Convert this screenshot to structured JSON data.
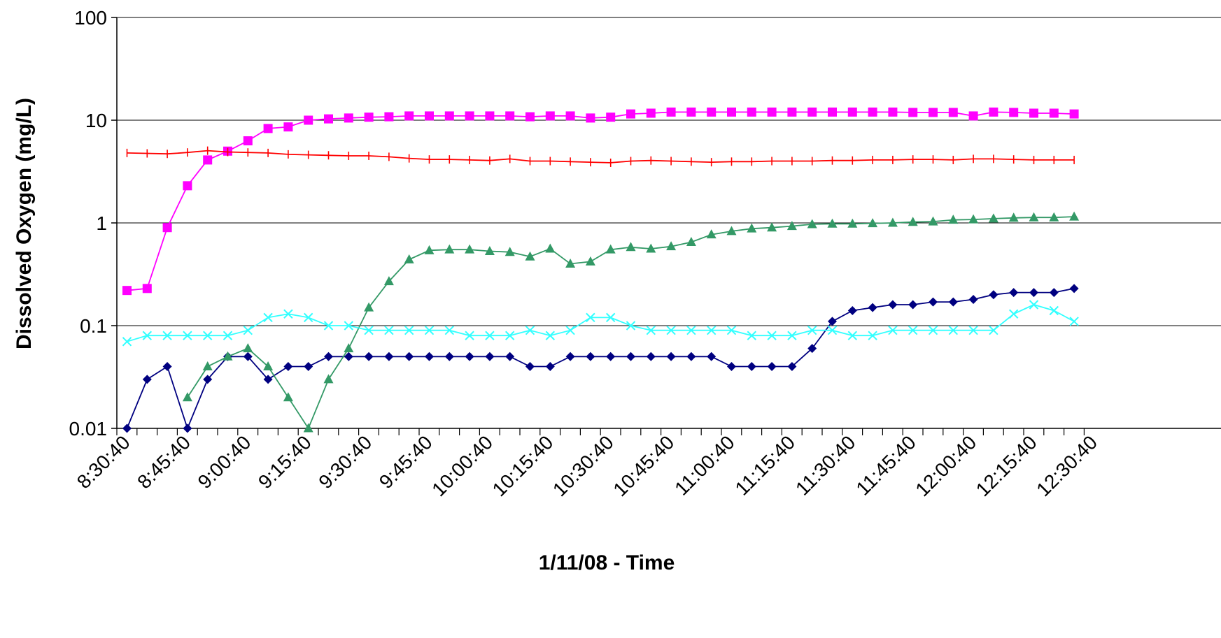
{
  "chart_data": {
    "type": "line",
    "title": "",
    "xlabel": "1/11/08 - Time",
    "ylabel": "Dissolved Oxygen (mg/L)",
    "y_scale": "log",
    "ylim": [
      0.01,
      100
    ],
    "y_ticks": [
      "0.01",
      "0.1",
      "1",
      "10",
      "100"
    ],
    "grid": "horizontal major gridlines",
    "legend": "none",
    "x_start": "8:30:40",
    "x_interval_minutes": 5,
    "x_tick_labels": [
      "8:30:40",
      "8:45:40",
      "9:00:40",
      "9:15:40",
      "9:30:40",
      "9:45:40",
      "10:00:40",
      "10:15:40",
      "10:30:40",
      "10:45:40",
      "11:00:40",
      "11:15:40",
      "11:30:40",
      "11:45:40",
      "12:00:40",
      "12:15:40",
      "12:30:40"
    ],
    "series": [
      {
        "color": "#000080",
        "marker": "diamond",
        "values": [
          0.01,
          0.03,
          0.04,
          0.01,
          0.03,
          0.05,
          0.05,
          0.03,
          0.04,
          0.04,
          0.05,
          0.05,
          0.05,
          0.05,
          0.05,
          0.05,
          0.05,
          0.05,
          0.05,
          0.05,
          0.04,
          0.04,
          0.05,
          0.05,
          0.05,
          0.05,
          0.05,
          0.05,
          0.05,
          0.05,
          0.04,
          0.04,
          0.04,
          0.04,
          0.06,
          0.11,
          0.14,
          0.15,
          0.16,
          0.16,
          0.17,
          0.17,
          0.18,
          0.2,
          0.21,
          0.21,
          0.21,
          0.23
        ]
      },
      {
        "color": "#ff00ff",
        "marker": "square",
        "values": [
          0.22,
          0.23,
          0.9,
          2.3,
          4.1,
          5.0,
          6.3,
          8.3,
          8.6,
          10.0,
          10.3,
          10.5,
          10.7,
          10.8,
          11.0,
          11.0,
          11.0,
          11.0,
          11.0,
          11.0,
          10.8,
          11.0,
          11.0,
          10.5,
          10.7,
          11.5,
          11.7,
          12.0,
          12.0,
          12.0,
          12.0,
          12.0,
          12.0,
          12.0,
          12.0,
          12.0,
          12.0,
          12.0,
          12.0,
          11.9,
          11.9,
          11.9,
          11.0,
          12.0,
          11.9,
          11.7,
          11.7,
          11.5
        ]
      },
      {
        "color": "#ff0000",
        "marker": "plus",
        "values": [
          4.8,
          4.75,
          4.7,
          4.85,
          5.05,
          4.9,
          4.85,
          4.8,
          4.65,
          4.6,
          4.55,
          4.5,
          4.5,
          4.4,
          4.25,
          4.15,
          4.15,
          4.1,
          4.05,
          4.2,
          4.0,
          4.0,
          3.95,
          3.9,
          3.85,
          4.0,
          4.05,
          4.0,
          3.95,
          3.9,
          3.95,
          3.95,
          4.0,
          4.0,
          4.0,
          4.05,
          4.05,
          4.1,
          4.1,
          4.15,
          4.15,
          4.1,
          4.2,
          4.2,
          4.15,
          4.1,
          4.1,
          4.1
        ]
      },
      {
        "color": "#339966",
        "marker": "triangle",
        "values": [
          null,
          null,
          null,
          0.02,
          0.04,
          0.05,
          0.06,
          0.04,
          0.02,
          0.01,
          0.03,
          0.06,
          0.15,
          0.27,
          0.44,
          0.54,
          0.55,
          0.55,
          0.53,
          0.52,
          0.47,
          0.56,
          0.4,
          0.42,
          0.55,
          0.58,
          0.56,
          0.59,
          0.65,
          0.77,
          0.83,
          0.88,
          0.9,
          0.93,
          0.97,
          0.98,
          0.98,
          0.99,
          1.0,
          1.02,
          1.03,
          1.07,
          1.08,
          1.1,
          1.12,
          1.13,
          1.13,
          1.15
        ]
      },
      {
        "color": "#33ffff",
        "marker": "x",
        "values": [
          0.07,
          0.08,
          0.08,
          0.08,
          0.08,
          0.08,
          0.09,
          0.12,
          0.13,
          0.12,
          0.1,
          0.1,
          0.09,
          0.09,
          0.09,
          0.09,
          0.09,
          0.08,
          0.08,
          0.08,
          0.09,
          0.08,
          0.09,
          0.12,
          0.12,
          0.1,
          0.09,
          0.09,
          0.09,
          0.09,
          0.09,
          0.08,
          0.08,
          0.08,
          0.09,
          0.09,
          0.08,
          0.08,
          0.09,
          0.09,
          0.09,
          0.09,
          0.09,
          0.09,
          0.13,
          0.16,
          0.14,
          0.11
        ]
      }
    ]
  }
}
